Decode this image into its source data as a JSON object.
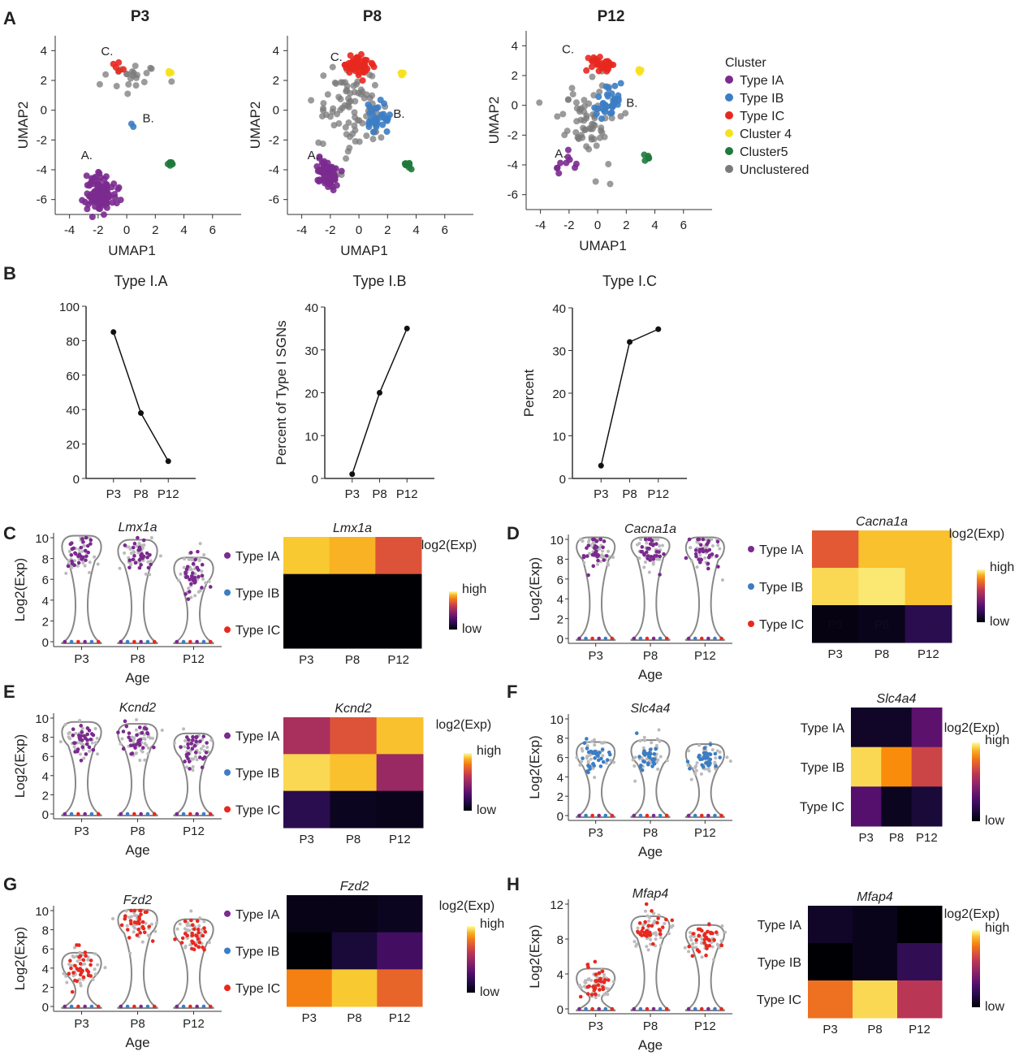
{
  "colors": {
    "Type IA": "#7b2a8f",
    "Type IB": "#3c7dc4",
    "Type IC": "#e8281f",
    "Cluster 4": "#f6e11e",
    "Cluster5": "#1f7a3c",
    "Unclustered": "#7a7a7a"
  },
  "panel_labels": [
    "A",
    "B",
    "C",
    "D",
    "E",
    "F",
    "G",
    "H"
  ],
  "umap": {
    "xlabel": "UMAP1",
    "ylabel": "UMAP2",
    "legend_title": "Cluster",
    "legend": [
      "Type IA",
      "Type IB",
      "Type IC",
      "Cluster 4",
      "Cluster5",
      "Unclustered"
    ]
  },
  "bpanel": {
    "ylabel_mid": "Percent of Type I SGNs",
    "ylabel_right": "Percent"
  },
  "violin": {
    "ylabel": "Log2(Exp)",
    "xlabel": "Age",
    "heat_label": "log2(Exp)",
    "high": "high",
    "low": "low"
  },
  "chart_data": [
    {
      "type": "scatter",
      "title": "P3",
      "xlabel": "UMAP1",
      "ylabel": "UMAP2",
      "xlim": [
        -5,
        8
      ],
      "ylim": [
        -7,
        5
      ],
      "xticks": [
        -4,
        -2,
        0,
        2,
        4,
        6
      ],
      "yticks": [
        -6,
        -4,
        -2,
        0,
        2,
        4
      ],
      "clusters": [
        {
          "name": "Type IA",
          "cx": -1.8,
          "cy": -5.5,
          "sx": 0.5,
          "sy": 0.6,
          "n": 110
        },
        {
          "name": "Type IB",
          "cx": 0.4,
          "cy": -0.9,
          "sx": 0.1,
          "sy": 0.1,
          "n": 2
        },
        {
          "name": "Type IC",
          "cx": -0.5,
          "cy": 2.7,
          "sx": 0.2,
          "sy": 0.3,
          "n": 5
        },
        {
          "name": "Cluster 4",
          "cx": 3.0,
          "cy": 2.5,
          "sx": 0.1,
          "sy": 0.2,
          "n": 5
        },
        {
          "name": "Cluster5",
          "cx": 3.1,
          "cy": -3.6,
          "sx": 0.15,
          "sy": 0.15,
          "n": 8
        },
        {
          "name": "Unclustered",
          "cx": 0.3,
          "cy": 2.3,
          "sx": 1.0,
          "sy": 0.6,
          "n": 22
        }
      ],
      "annotations": [
        {
          "text": "A.",
          "x": -3.2,
          "y": -3.3
        },
        {
          "text": "B.",
          "x": 1.1,
          "y": -0.8
        },
        {
          "text": "C.",
          "x": -1.8,
          "y": 3.7
        }
      ]
    },
    {
      "type": "scatter",
      "title": "P8",
      "xlabel": "UMAP1",
      "ylabel": "UMAP2",
      "xlim": [
        -5,
        8
      ],
      "ylim": [
        -7,
        5
      ],
      "xticks": [
        -4,
        -2,
        0,
        2,
        4,
        6
      ],
      "yticks": [
        -6,
        -4,
        -2,
        0,
        2,
        4
      ],
      "clusters": [
        {
          "name": "Type IA",
          "cx": -2.3,
          "cy": -4.3,
          "sx": 0.4,
          "sy": 0.5,
          "n": 70
        },
        {
          "name": "Type IB",
          "cx": 1.3,
          "cy": -0.5,
          "sx": 0.4,
          "sy": 0.5,
          "n": 30
        },
        {
          "name": "Type IC",
          "cx": -0.1,
          "cy": 3.0,
          "sx": 0.5,
          "sy": 0.3,
          "n": 55
        },
        {
          "name": "Cluster 4",
          "cx": 3.0,
          "cy": 2.6,
          "sx": 0.1,
          "sy": 0.15,
          "n": 6
        },
        {
          "name": "Cluster5",
          "cx": 3.3,
          "cy": -3.7,
          "sx": 0.15,
          "sy": 0.15,
          "n": 8
        },
        {
          "name": "Unclustered",
          "cx": -0.5,
          "cy": 0.0,
          "sx": 1.2,
          "sy": 1.4,
          "n": 90
        }
      ],
      "annotations": [
        {
          "text": "A.",
          "x": -3.6,
          "y": -3.3
        },
        {
          "text": "B.",
          "x": 2.4,
          "y": -0.5
        },
        {
          "text": "C.",
          "x": -2.0,
          "y": 3.3
        }
      ]
    },
    {
      "type": "scatter",
      "title": "P12",
      "xlabel": "UMAP1",
      "ylabel": "UMAP2",
      "xlim": [
        -5,
        8
      ],
      "ylim": [
        -7,
        5
      ],
      "xticks": [
        -4,
        -2,
        0,
        2,
        4,
        6
      ],
      "yticks": [
        -6,
        -4,
        -2,
        0,
        2,
        4
      ],
      "clusters": [
        {
          "name": "Type IA",
          "cx": -2.0,
          "cy": -4.0,
          "sx": 0.5,
          "sy": 0.4,
          "n": 10
        },
        {
          "name": "Type IB",
          "cx": 0.7,
          "cy": 0.2,
          "sx": 0.5,
          "sy": 0.5,
          "n": 35
        },
        {
          "name": "Type IC",
          "cx": 0.2,
          "cy": 2.8,
          "sx": 0.4,
          "sy": 0.3,
          "n": 35
        },
        {
          "name": "Cluster 4",
          "cx": 2.9,
          "cy": 2.5,
          "sx": 0.1,
          "sy": 0.15,
          "n": 5
        },
        {
          "name": "Cluster5",
          "cx": 3.5,
          "cy": -3.5,
          "sx": 0.15,
          "sy": 0.15,
          "n": 5
        },
        {
          "name": "Unclustered",
          "cx": -0.6,
          "cy": -0.8,
          "sx": 1.0,
          "sy": 1.4,
          "n": 70
        }
      ],
      "annotations": [
        {
          "text": "A.",
          "x": -3.0,
          "y": -3.5
        },
        {
          "text": "B.",
          "x": 2.0,
          "y": -0.1
        },
        {
          "text": "C.",
          "x": -2.5,
          "y": 3.5
        }
      ]
    },
    {
      "type": "line",
      "title": "Type I.A",
      "categories": [
        "P3",
        "P8",
        "P12"
      ],
      "values": [
        85,
        38,
        10
      ],
      "ylim": [
        0,
        100
      ],
      "yticks": [
        0,
        20,
        40,
        60,
        80,
        100
      ],
      "ylabel": ""
    },
    {
      "type": "line",
      "title": "Type I.B",
      "categories": [
        "P3",
        "P8",
        "P12"
      ],
      "values": [
        1,
        20,
        35
      ],
      "ylim": [
        0,
        40
      ],
      "yticks": [
        0,
        10,
        20,
        30,
        40
      ],
      "ylabel": "Percent of Type I SGNs"
    },
    {
      "type": "line",
      "title": "Type I.C",
      "categories": [
        "P3",
        "P8",
        "P12"
      ],
      "values": [
        3,
        32,
        35
      ],
      "ylim": [
        0,
        40
      ],
      "yticks": [
        0,
        10,
        20,
        30,
        40
      ],
      "ylabel": "Percent"
    },
    {
      "type": "violin",
      "gene": "Lmx1a",
      "categories": [
        "P3",
        "P8",
        "P12"
      ],
      "ylim": [
        0,
        10
      ],
      "yticks": [
        0,
        2,
        4,
        6,
        8,
        10
      ],
      "centers": [
        8.6,
        8.2,
        6.5
      ],
      "dominant": "Type IA"
    },
    {
      "type": "heatmap",
      "gene": "Lmx1a",
      "rows": [
        "Type IA",
        "Type IB",
        "Type IC"
      ],
      "cols": [
        "P3",
        "P8",
        "P12"
      ],
      "values": [
        [
          0.93,
          0.9,
          0.7
        ],
        [
          0.0,
          0.0,
          0.0
        ],
        [
          0.0,
          0.0,
          0.0
        ]
      ]
    },
    {
      "type": "violin",
      "gene": "Cacna1a",
      "categories": [
        "P3",
        "P8",
        "P12"
      ],
      "ylim": [
        0,
        10
      ],
      "yticks": [
        0,
        2,
        4,
        6,
        8,
        10
      ],
      "centers": [
        8.8,
        9.0,
        8.7
      ],
      "dominant": "Type IA"
    },
    {
      "type": "heatmap",
      "gene": "Cacna1a",
      "rows": [
        "Type IA",
        "Type IB",
        "Type IC"
      ],
      "cols": [
        "P3",
        "P8",
        "P12"
      ],
      "values": [
        [
          0.72,
          0.92,
          0.92
        ],
        [
          0.95,
          0.97,
          0.92
        ],
        [
          0.03,
          0.05,
          0.18
        ]
      ],
      "ghost_labels": [
        "P3",
        "P8",
        "P12"
      ]
    },
    {
      "type": "violin",
      "gene": "Kcnd2",
      "categories": [
        "P3",
        "P8",
        "P12"
      ],
      "ylim": [
        0,
        10
      ],
      "yticks": [
        0,
        2,
        4,
        6,
        8,
        10
      ],
      "centers": [
        8.0,
        7.8,
        6.8
      ],
      "dominant": "Type IA"
    },
    {
      "type": "heatmap",
      "gene": "Kcnd2",
      "rows": [
        "Type IA",
        "Type IB",
        "Type IC"
      ],
      "cols": [
        "P3",
        "P8",
        "P12"
      ],
      "values": [
        [
          0.55,
          0.7,
          0.92
        ],
        [
          0.95,
          0.92,
          0.5
        ],
        [
          0.18,
          0.06,
          0.05
        ]
      ]
    },
    {
      "type": "violin",
      "gene": "Slc4a4",
      "categories": [
        "P3",
        "P8",
        "P12"
      ],
      "ylim": [
        0,
        10
      ],
      "yticks": [
        0,
        2,
        4,
        6,
        8,
        10
      ],
      "centers": [
        6.0,
        6.2,
        5.8
      ],
      "dominant": "Type IB"
    },
    {
      "type": "heatmap",
      "gene": "Slc4a4",
      "rows": [
        "Type IA",
        "Type IB",
        "Type IC"
      ],
      "cols": [
        "P3",
        "P8",
        "P12"
      ],
      "values": [
        [
          0.08,
          0.08,
          0.32
        ],
        [
          0.95,
          0.85,
          0.65
        ],
        [
          0.3,
          0.06,
          0.12
        ]
      ]
    },
    {
      "type": "violin",
      "gene": "Fzd2",
      "categories": [
        "P3",
        "P8",
        "P12"
      ],
      "ylim": [
        0,
        10
      ],
      "yticks": [
        0,
        2,
        4,
        6,
        8,
        10
      ],
      "centers": [
        4.0,
        8.5,
        7.5
      ],
      "dominant": "Type IC"
    },
    {
      "type": "heatmap",
      "gene": "Fzd2",
      "rows": [
        "Type IA",
        "Type IB",
        "Type IC"
      ],
      "cols": [
        "P3",
        "P8",
        "P12"
      ],
      "values": [
        [
          0.04,
          0.04,
          0.06
        ],
        [
          0.0,
          0.12,
          0.25
        ],
        [
          0.82,
          0.93,
          0.75
        ]
      ]
    },
    {
      "type": "violin",
      "gene": "Mfap4",
      "categories": [
        "P3",
        "P8",
        "P12"
      ],
      "ylim": [
        0,
        12
      ],
      "yticks": [
        0,
        4,
        8,
        12
      ],
      "centers": [
        3.0,
        9.0,
        8.0
      ],
      "dominant": "Type IC"
    },
    {
      "type": "heatmap",
      "gene": "Mfap4",
      "rows": [
        "Type IA",
        "Type IB",
        "Type IC"
      ],
      "cols": [
        "P3",
        "P8",
        "P12"
      ],
      "values": [
        [
          0.08,
          0.05,
          0.0
        ],
        [
          0.0,
          0.05,
          0.2
        ],
        [
          0.78,
          0.95,
          0.6
        ]
      ]
    }
  ]
}
